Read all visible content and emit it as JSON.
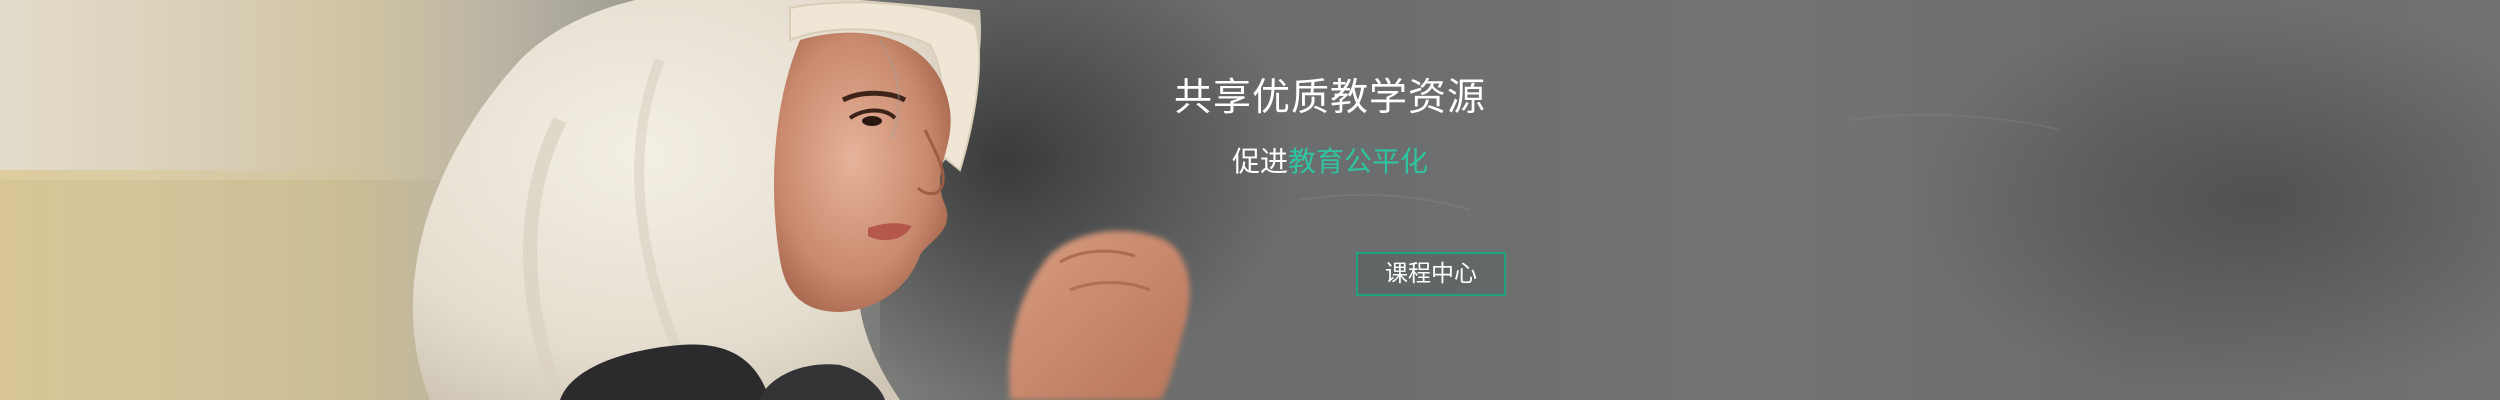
{
  "banner": {
    "headline": "共享优质教学资源",
    "subline_prefix": "促进",
    "subline_accent": "教育公平化",
    "cta_label": "课程中心"
  },
  "colors": {
    "accent": "#2fc4a0",
    "cta_border": "#1fa37f",
    "text": "#ffffff"
  }
}
